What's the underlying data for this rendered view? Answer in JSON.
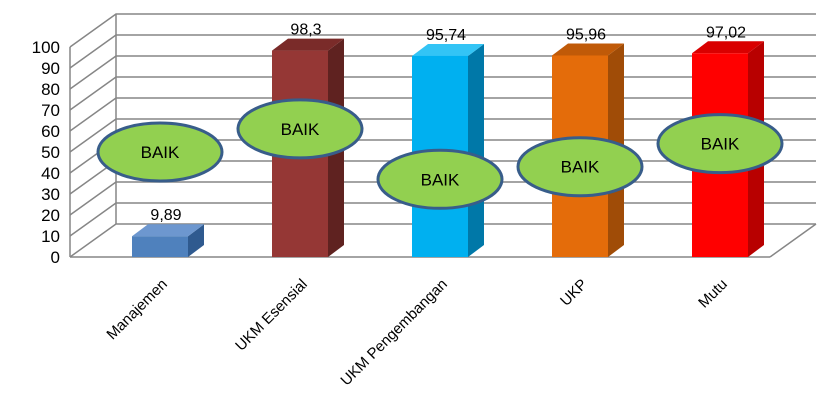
{
  "chart_data": {
    "type": "bar",
    "categories": [
      "Manajemen",
      "UKM Esensial",
      "UKM Pengembangan",
      "UKP",
      "Mutu"
    ],
    "values": [
      9.89,
      98.3,
      95.74,
      95.96,
      97.02
    ],
    "data_labels": [
      "9,89",
      "98,3",
      "95,74",
      "95,96",
      "97,02"
    ],
    "ylim": [
      0,
      100
    ],
    "yticks": [
      "0",
      "10",
      "20",
      "30",
      "40",
      "50",
      "60",
      "70",
      "80",
      "90",
      "100"
    ],
    "grid": true,
    "three_d": true,
    "colors": [
      "#4f81bd",
      "#953735",
      "#00b0f0",
      "#e46c0a",
      "#ff0000"
    ],
    "side_colors": [
      "#2f5a8f",
      "#5f2220",
      "#0078a8",
      "#a04c07",
      "#b80000"
    ],
    "top_colors": [
      "#6d97cf",
      "#7a2b29",
      "#33c4f5",
      "#c05a08",
      "#d90000"
    ],
    "annotations": [
      {
        "text": "BAIK",
        "category": "Manajemen",
        "y": 50
      },
      {
        "text": "BAIK",
        "category": "UKM Esensial",
        "y": 61
      },
      {
        "text": "BAIK",
        "category": "UKM Pengembangan",
        "y": 37
      },
      {
        "text": "BAIK",
        "category": "UKP",
        "y": 43
      },
      {
        "text": "BAIK",
        "category": "Mutu",
        "y": 54
      }
    ],
    "annotation_fill": "#92d050",
    "annotation_stroke": "#385d8a"
  }
}
